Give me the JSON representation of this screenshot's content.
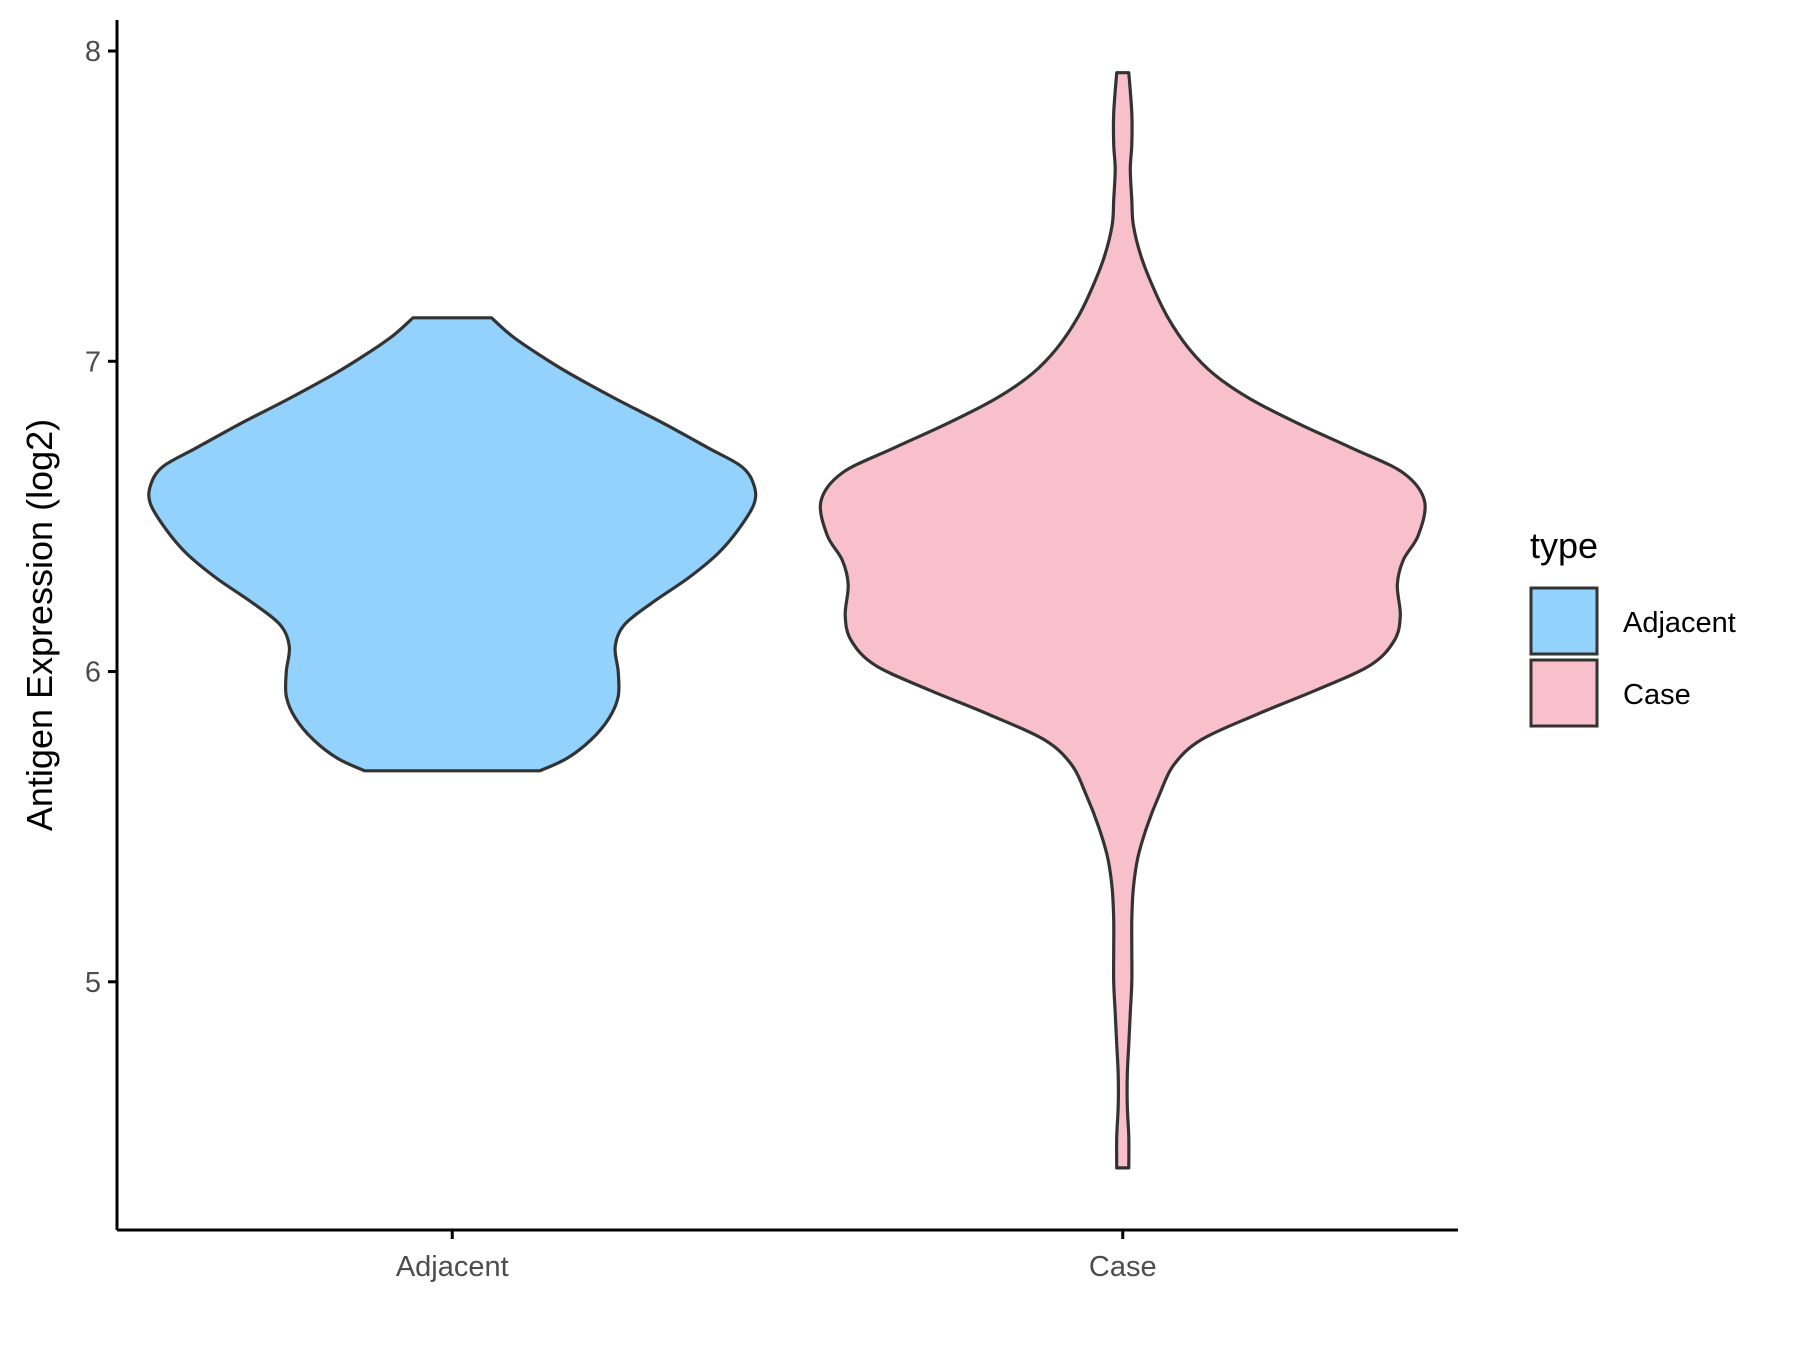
{
  "chart_data": {
    "type": "violin",
    "title": "",
    "xlabel": "",
    "ylabel": "Antigen Expression (log2)",
    "categories": [
      "Adjacent",
      "Case"
    ],
    "ylim": [
      4.2,
      8.1
    ],
    "yticks": [
      5,
      6,
      7,
      8
    ],
    "grid": false,
    "legend": {
      "title": "type",
      "position": "right",
      "entries": [
        {
          "label": "Adjacent",
          "color": "#92D2FC"
        },
        {
          "label": "Case",
          "color": "#F8C0CB"
        }
      ]
    },
    "series": [
      {
        "category": "Adjacent",
        "color": "#92D2FC",
        "min": 5.68,
        "max": 7.14,
        "density": [
          [
            5.68,
            0.29
          ],
          [
            5.72,
            0.38
          ],
          [
            5.78,
            0.46
          ],
          [
            5.85,
            0.52
          ],
          [
            5.92,
            0.55
          ],
          [
            6.0,
            0.55
          ],
          [
            6.08,
            0.54
          ],
          [
            6.15,
            0.57
          ],
          [
            6.22,
            0.66
          ],
          [
            6.3,
            0.78
          ],
          [
            6.38,
            0.88
          ],
          [
            6.46,
            0.95
          ],
          [
            6.54,
            1.0
          ],
          [
            6.6,
            1.0
          ],
          [
            6.66,
            0.96
          ],
          [
            6.72,
            0.85
          ],
          [
            6.8,
            0.7
          ],
          [
            6.88,
            0.54
          ],
          [
            6.96,
            0.39
          ],
          [
            7.02,
            0.29
          ],
          [
            7.08,
            0.2
          ],
          [
            7.14,
            0.13
          ]
        ]
      },
      {
        "category": "Case",
        "color": "#F8C0CB",
        "min": 4.4,
        "max": 7.93,
        "density": [
          [
            4.4,
            0.02
          ],
          [
            4.5,
            0.02
          ],
          [
            4.6,
            0.015
          ],
          [
            4.7,
            0.015
          ],
          [
            4.8,
            0.02
          ],
          [
            4.9,
            0.025
          ],
          [
            5.0,
            0.03
          ],
          [
            5.1,
            0.03
          ],
          [
            5.2,
            0.03
          ],
          [
            5.3,
            0.035
          ],
          [
            5.4,
            0.05
          ],
          [
            5.5,
            0.08
          ],
          [
            5.6,
            0.12
          ],
          [
            5.7,
            0.17
          ],
          [
            5.78,
            0.26
          ],
          [
            5.86,
            0.44
          ],
          [
            5.94,
            0.64
          ],
          [
            6.02,
            0.82
          ],
          [
            6.1,
            0.9
          ],
          [
            6.18,
            0.92
          ],
          [
            6.28,
            0.91
          ],
          [
            6.36,
            0.93
          ],
          [
            6.44,
            0.98
          ],
          [
            6.55,
            1.0
          ],
          [
            6.64,
            0.93
          ],
          [
            6.72,
            0.76
          ],
          [
            6.8,
            0.58
          ],
          [
            6.88,
            0.42
          ],
          [
            6.96,
            0.3
          ],
          [
            7.04,
            0.22
          ],
          [
            7.14,
            0.15
          ],
          [
            7.24,
            0.1
          ],
          [
            7.34,
            0.06
          ],
          [
            7.44,
            0.035
          ],
          [
            7.52,
            0.03
          ],
          [
            7.62,
            0.025
          ],
          [
            7.7,
            0.03
          ],
          [
            7.8,
            0.03
          ],
          [
            7.93,
            0.02
          ]
        ]
      }
    ]
  }
}
